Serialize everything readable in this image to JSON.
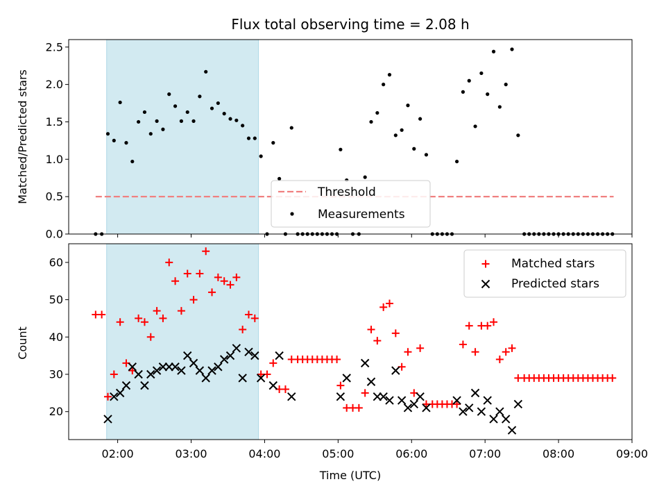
{
  "chart_data": [
    {
      "type": "scatter",
      "title": "Flux total observing time = 2.08 h",
      "ylabel": "Matched/Predicted stars",
      "xlabel": "",
      "xlim": [
        "01:20",
        "09:00"
      ],
      "ylim": [
        0,
        2.6
      ],
      "x_ticks": [
        "02:00",
        "03:00",
        "04:00",
        "05:00",
        "06:00",
        "07:00",
        "08:00",
        "09:00"
      ],
      "y_ticks": [
        "0.0",
        "0.5",
        "1.0",
        "1.5",
        "2.0",
        "2.5"
      ],
      "highlight_span": {
        "start": "01:51",
        "end": "03:55",
        "color": "#add8e6"
      },
      "threshold": {
        "name": "Threshold",
        "value": 0.5,
        "xrange": [
          "01:42",
          "08:45"
        ],
        "color": "#f08080"
      },
      "legend": {
        "placement": "lower-center",
        "entries": [
          "Threshold",
          "Measurements"
        ]
      },
      "series": [
        {
          "name": "Measurements",
          "marker": "dot",
          "color": "#000000",
          "points": [
            [
              "01:42",
              0
            ],
            [
              "01:47",
              0
            ],
            [
              "01:52",
              1.34
            ],
            [
              "01:57",
              1.25
            ],
            [
              "02:02",
              1.76
            ],
            [
              "02:07",
              1.22
            ],
            [
              "02:12",
              0.97
            ],
            [
              "02:17",
              1.5
            ],
            [
              "02:22",
              1.63
            ],
            [
              "02:27",
              1.34
            ],
            [
              "02:32",
              1.51
            ],
            [
              "02:37",
              1.4
            ],
            [
              "02:42",
              1.87
            ],
            [
              "02:47",
              1.71
            ],
            [
              "02:52",
              1.51
            ],
            [
              "02:57",
              1.63
            ],
            [
              "03:02",
              1.51
            ],
            [
              "03:07",
              1.84
            ],
            [
              "03:12",
              2.17
            ],
            [
              "03:17",
              1.68
            ],
            [
              "03:22",
              1.75
            ],
            [
              "03:27",
              1.61
            ],
            [
              "03:32",
              1.54
            ],
            [
              "03:37",
              1.52
            ],
            [
              "03:42",
              1.45
            ],
            [
              "03:47",
              1.28
            ],
            [
              "03:52",
              1.28
            ],
            [
              "03:57",
              1.04
            ],
            [
              "04:02",
              0
            ],
            [
              "04:07",
              1.22
            ],
            [
              "04:12",
              0.74
            ],
            [
              "04:17",
              0
            ],
            [
              "04:22",
              1.42
            ],
            [
              "04:27",
              0
            ],
            [
              "04:31",
              0
            ],
            [
              "04:35",
              0
            ],
            [
              "04:39",
              0
            ],
            [
              "04:43",
              0
            ],
            [
              "04:47",
              0
            ],
            [
              "04:51",
              0
            ],
            [
              "04:55",
              0
            ],
            [
              "04:59",
              0
            ],
            [
              "05:02",
              1.13
            ],
            [
              "05:07",
              0.72
            ],
            [
              "05:12",
              0
            ],
            [
              "05:17",
              0
            ],
            [
              "05:22",
              0.76
            ],
            [
              "05:27",
              1.5
            ],
            [
              "05:32",
              1.62
            ],
            [
              "05:37",
              2.0
            ],
            [
              "05:42",
              2.13
            ],
            [
              "05:47",
              1.32
            ],
            [
              "05:52",
              1.39
            ],
            [
              "05:57",
              1.72
            ],
            [
              "06:02",
              1.14
            ],
            [
              "06:07",
              1.54
            ],
            [
              "06:12",
              1.06
            ],
            [
              "06:17",
              0
            ],
            [
              "06:21",
              0
            ],
            [
              "06:25",
              0
            ],
            [
              "06:29",
              0
            ],
            [
              "06:33",
              0
            ],
            [
              "06:37",
              0.97
            ],
            [
              "06:42",
              1.9
            ],
            [
              "06:47",
              2.05
            ],
            [
              "06:52",
              1.44
            ],
            [
              "06:57",
              2.15
            ],
            [
              "07:02",
              1.87
            ],
            [
              "07:07",
              2.44
            ],
            [
              "07:12",
              1.7
            ],
            [
              "07:17",
              2.0
            ],
            [
              "07:22",
              2.47
            ],
            [
              "07:27",
              1.32
            ],
            [
              "07:32",
              0
            ],
            [
              "07:36",
              0
            ],
            [
              "07:40",
              0
            ],
            [
              "07:44",
              0
            ],
            [
              "07:48",
              0
            ],
            [
              "07:52",
              0
            ],
            [
              "07:56",
              0
            ],
            [
              "08:00",
              0
            ],
            [
              "08:04",
              0
            ],
            [
              "08:08",
              0
            ],
            [
              "08:12",
              0
            ],
            [
              "08:16",
              0
            ],
            [
              "08:20",
              0
            ],
            [
              "08:24",
              0
            ],
            [
              "08:28",
              0
            ],
            [
              "08:32",
              0
            ],
            [
              "08:36",
              0
            ],
            [
              "08:40",
              0
            ],
            [
              "08:44",
              0
            ]
          ]
        }
      ]
    },
    {
      "type": "scatter",
      "title": "",
      "xlabel": "Time (UTC)",
      "ylabel": "Count",
      "xlim": [
        "01:20",
        "09:00"
      ],
      "ylim": [
        12.5,
        65
      ],
      "x_ticks": [
        "02:00",
        "03:00",
        "04:00",
        "05:00",
        "06:00",
        "07:00",
        "08:00",
        "09:00"
      ],
      "y_ticks": [
        "20",
        "30",
        "40",
        "50",
        "60"
      ],
      "highlight_span": {
        "start": "01:51",
        "end": "03:55",
        "color": "#add8e6"
      },
      "legend": {
        "placement": "top-right",
        "entries": [
          "Matched stars",
          "Predicted stars"
        ]
      },
      "series": [
        {
          "name": "Matched stars",
          "marker": "plus",
          "color": "#ff0000",
          "points": [
            [
              "01:42",
              46
            ],
            [
              "01:47",
              46
            ],
            [
              "01:52",
              24
            ],
            [
              "01:57",
              30
            ],
            [
              "02:02",
              44
            ],
            [
              "02:07",
              33
            ],
            [
              "02:12",
              31
            ],
            [
              "02:17",
              45
            ],
            [
              "02:22",
              44
            ],
            [
              "02:27",
              40
            ],
            [
              "02:32",
              47
            ],
            [
              "02:37",
              45
            ],
            [
              "02:42",
              60
            ],
            [
              "02:47",
              55
            ],
            [
              "02:52",
              47
            ],
            [
              "02:57",
              57
            ],
            [
              "03:02",
              50
            ],
            [
              "03:07",
              57
            ],
            [
              "03:12",
              63
            ],
            [
              "03:17",
              52
            ],
            [
              "03:22",
              56
            ],
            [
              "03:27",
              55
            ],
            [
              "03:32",
              54
            ],
            [
              "03:37",
              56
            ],
            [
              "03:42",
              42
            ],
            [
              "03:47",
              46
            ],
            [
              "03:52",
              45
            ],
            [
              "03:57",
              30
            ],
            [
              "04:02",
              30
            ],
            [
              "04:07",
              33
            ],
            [
              "04:12",
              26
            ],
            [
              "04:17",
              26
            ],
            [
              "04:22",
              34
            ],
            [
              "04:27",
              34
            ],
            [
              "04:31",
              34
            ],
            [
              "04:35",
              34
            ],
            [
              "04:39",
              34
            ],
            [
              "04:43",
              34
            ],
            [
              "04:47",
              34
            ],
            [
              "04:51",
              34
            ],
            [
              "04:55",
              34
            ],
            [
              "04:59",
              34
            ],
            [
              "05:02",
              27
            ],
            [
              "05:07",
              21
            ],
            [
              "05:12",
              21
            ],
            [
              "05:17",
              21
            ],
            [
              "05:22",
              25
            ],
            [
              "05:27",
              42
            ],
            [
              "05:32",
              39
            ],
            [
              "05:37",
              48
            ],
            [
              "05:42",
              49
            ],
            [
              "05:47",
              41
            ],
            [
              "05:52",
              32
            ],
            [
              "05:57",
              36
            ],
            [
              "06:02",
              25
            ],
            [
              "06:07",
              37
            ],
            [
              "06:12",
              22
            ],
            [
              "06:17",
              22
            ],
            [
              "06:21",
              22
            ],
            [
              "06:25",
              22
            ],
            [
              "06:29",
              22
            ],
            [
              "06:33",
              22
            ],
            [
              "06:37",
              22
            ],
            [
              "06:42",
              38
            ],
            [
              "06:47",
              43
            ],
            [
              "06:52",
              36
            ],
            [
              "06:57",
              43
            ],
            [
              "07:02",
              43
            ],
            [
              "07:07",
              44
            ],
            [
              "07:12",
              34
            ],
            [
              "07:17",
              36
            ],
            [
              "07:22",
              37
            ],
            [
              "07:27",
              29
            ],
            [
              "07:32",
              29
            ],
            [
              "07:36",
              29
            ],
            [
              "07:40",
              29
            ],
            [
              "07:44",
              29
            ],
            [
              "07:48",
              29
            ],
            [
              "07:52",
              29
            ],
            [
              "07:56",
              29
            ],
            [
              "08:00",
              29
            ],
            [
              "08:04",
              29
            ],
            [
              "08:08",
              29
            ],
            [
              "08:12",
              29
            ],
            [
              "08:16",
              29
            ],
            [
              "08:20",
              29
            ],
            [
              "08:24",
              29
            ],
            [
              "08:28",
              29
            ],
            [
              "08:32",
              29
            ],
            [
              "08:36",
              29
            ],
            [
              "08:40",
              29
            ],
            [
              "08:44",
              29
            ]
          ]
        },
        {
          "name": "Predicted stars",
          "marker": "x",
          "color": "#000000",
          "points": [
            [
              "01:52",
              18
            ],
            [
              "01:57",
              24
            ],
            [
              "02:02",
              25
            ],
            [
              "02:07",
              27
            ],
            [
              "02:12",
              32
            ],
            [
              "02:17",
              30
            ],
            [
              "02:22",
              27
            ],
            [
              "02:27",
              30
            ],
            [
              "02:32",
              31
            ],
            [
              "02:37",
              32
            ],
            [
              "02:42",
              32
            ],
            [
              "02:47",
              32
            ],
            [
              "02:52",
              31
            ],
            [
              "02:57",
              35
            ],
            [
              "03:02",
              33
            ],
            [
              "03:07",
              31
            ],
            [
              "03:12",
              29
            ],
            [
              "03:17",
              31
            ],
            [
              "03:22",
              32
            ],
            [
              "03:27",
              34
            ],
            [
              "03:32",
              35
            ],
            [
              "03:37",
              37
            ],
            [
              "03:42",
              29
            ],
            [
              "03:47",
              36
            ],
            [
              "03:52",
              35
            ],
            [
              "03:57",
              29
            ],
            [
              "04:07",
              27
            ],
            [
              "04:12",
              35
            ],
            [
              "04:22",
              24
            ],
            [
              "05:02",
              24
            ],
            [
              "05:07",
              29
            ],
            [
              "05:22",
              33
            ],
            [
              "05:27",
              28
            ],
            [
              "05:32",
              24
            ],
            [
              "05:37",
              24
            ],
            [
              "05:42",
              23
            ],
            [
              "05:47",
              31
            ],
            [
              "05:52",
              23
            ],
            [
              "05:57",
              21
            ],
            [
              "06:02",
              22
            ],
            [
              "06:07",
              24
            ],
            [
              "06:12",
              21
            ],
            [
              "06:37",
              23
            ],
            [
              "06:42",
              20
            ],
            [
              "06:47",
              21
            ],
            [
              "06:52",
              25
            ],
            [
              "06:57",
              20
            ],
            [
              "07:02",
              23
            ],
            [
              "07:07",
              18
            ],
            [
              "07:12",
              20
            ],
            [
              "07:17",
              18
            ],
            [
              "07:22",
              15
            ],
            [
              "07:27",
              22
            ]
          ]
        }
      ]
    }
  ]
}
